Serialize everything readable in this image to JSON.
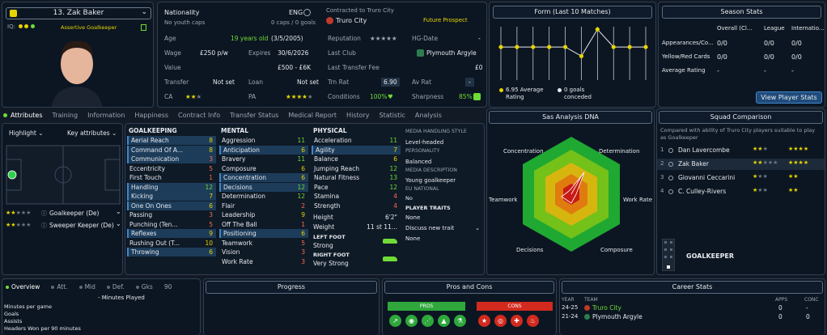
{
  "player": {
    "name": "13. Zak Baker",
    "role": "Assertive Goalkeeper",
    "iq_label": "IQ:"
  },
  "info": {
    "nationality_label": "Nationality",
    "nationality": "ENG",
    "youth_caps": "No youth caps",
    "caps": "0 caps / 0 goals",
    "contract_label": "Contracted to Truro City",
    "club": "Truro City",
    "prospect": "Future Prospect",
    "age_label": "Age",
    "age": "19 years old",
    "dob": "(3/5/2005)",
    "reputation_label": "Reputation",
    "hg_label": "HG-Date",
    "hg_value": "-",
    "wage_label": "Wage",
    "wage": "£250 p/w",
    "expires_label": "Expires",
    "expires": "30/6/2026",
    "last_club_label": "Last Club",
    "last_club": "Plymouth Argyle",
    "value_label": "Value",
    "value": "£500 - £6K",
    "ltf_label": "Last Transfer Fee",
    "ltf": "£0",
    "transfer_label": "Transfer",
    "transfer": "Not set",
    "loan_label": "Loan",
    "loan": "Not set",
    "trn_label": "Trn Rat",
    "trn": "6.90",
    "av_label": "Av Rat",
    "av": "-",
    "ca_label": "CA",
    "pa_label": "PA",
    "conditions_label": "Conditions",
    "conditions": "100%",
    "sharpness_label": "Sharpness",
    "sharpness": "85%"
  },
  "form": {
    "title": "Form (Last 10 Matches)",
    "avg": "6.95 Average Rating",
    "goals": "0 goals conceded",
    "points": [
      0.62,
      0.62,
      0.62,
      0.62,
      0.62,
      0.45,
      0.95,
      0.62,
      0.62,
      0.62
    ]
  },
  "season": {
    "title": "Season Stats",
    "cols": [
      "Overall (Cl...",
      "League",
      "Internatio..."
    ],
    "rows": [
      {
        "label": "Appearances/Co...",
        "v": [
          "0/0",
          "0/0",
          "0/0"
        ]
      },
      {
        "label": "Yellow/Red Cards",
        "v": [
          "0/0",
          "0/0",
          "0/0"
        ]
      },
      {
        "label": "Average Rating",
        "v": [
          "-",
          "-",
          "-"
        ]
      }
    ],
    "button": "View Player Stats"
  },
  "tabs": [
    "Attributes",
    "Training",
    "Information",
    "Happiness",
    "Contract Info",
    "Transfer Status",
    "Medical Report",
    "History",
    "Statistic",
    "Analysis"
  ],
  "left": {
    "highlight": "Highlight",
    "key_attr": "Key attributes",
    "roles": [
      {
        "label": "Goalkeeper (De)"
      },
      {
        "label": "Sweeper Keeper (De)"
      }
    ]
  },
  "gk": {
    "title": "GOALKEEPING",
    "items": [
      [
        "Aerial Reach",
        "8"
      ],
      [
        "Command Of A...",
        "8"
      ],
      [
        "Communication",
        "3"
      ],
      [
        "Eccentricity",
        "5"
      ],
      [
        "First Touch",
        "1"
      ],
      [
        "Handling",
        "12"
      ],
      [
        "Kicking",
        "7"
      ],
      [
        "One On Ones",
        "6"
      ],
      [
        "Passing",
        "3"
      ],
      [
        "Punching (Ten...",
        "5"
      ],
      [
        "Reflexes",
        "9"
      ],
      [
        "Rushing Out (T...",
        "10"
      ],
      [
        "Throwing",
        "6"
      ]
    ]
  },
  "mental": {
    "title": "MENTAL",
    "items": [
      [
        "Aggression",
        "11"
      ],
      [
        "Anticipation",
        "6"
      ],
      [
        "Bravery",
        "11"
      ],
      [
        "Composure",
        "6"
      ],
      [
        "Concentration",
        "6"
      ],
      [
        "Decisions",
        "12"
      ],
      [
        "Determination",
        "12"
      ],
      [
        "Flair",
        "2"
      ],
      [
        "Leadership",
        "9"
      ],
      [
        "Off The Ball",
        "1"
      ],
      [
        "Positioning",
        "6"
      ],
      [
        "Teamwork",
        "5"
      ],
      [
        "Vision",
        "3"
      ],
      [
        "Work Rate",
        "3"
      ]
    ]
  },
  "physical": {
    "title": "PHYSICAL",
    "items": [
      [
        "Acceleration",
        "11"
      ],
      [
        "Agility",
        "7"
      ],
      [
        "Balance",
        "6"
      ],
      [
        "Jumping Reach",
        "12"
      ],
      [
        "Natural Fitness",
        "13"
      ],
      [
        "Pace",
        "12"
      ],
      [
        "Stamina",
        "4"
      ],
      [
        "Strength",
        "4"
      ]
    ],
    "height_label": "Height",
    "height": "6'2\"",
    "weight_label": "Weight",
    "weight": "11 st 11...",
    "left_foot_label": "LEFT FOOT",
    "left_foot": "Strong",
    "right_foot_label": "RIGHT FOOT",
    "right_foot": "Very Strong"
  },
  "media": {
    "title": "MEDIA HANDLING STYLE",
    "style": "Level-headed",
    "personality_label": "PERSONALITY",
    "personality": "Balanced",
    "desc_label": "MEDIA DESCRIPTION",
    "desc": "Young goalkeeper",
    "eu_label": "EU NATIONAL",
    "eu": "No",
    "traits_label": "PLAYER TRAITS",
    "traits": "None",
    "discuss": "Discuss new trait",
    "none2": "None"
  },
  "dna": {
    "title": "Sas Analysis DNA",
    "labels": [
      "Concentration",
      "Determination",
      "Work Rate",
      "Composure",
      "Decisions",
      "Teamwork"
    ]
  },
  "squad": {
    "title": "Squad Comparison",
    "desc": "Compared with ability of Truro City players suitable to play as Goalkeeper",
    "rows": [
      {
        "n": "1",
        "name": "Dan Lavercombe"
      },
      {
        "n": "2",
        "name": "Zak Baker"
      },
      {
        "n": "3",
        "name": "Giovanni Ceccarini"
      },
      {
        "n": "4",
        "name": "C. Culley-Rivers"
      }
    ],
    "position": "GOALKEEPER"
  },
  "bottom": {
    "tabs": [
      "Overview",
      "Att.",
      "Mid",
      "Def.",
      "Gks",
      "90"
    ],
    "minutes_played": "- Minutes Played",
    "stats": [
      "Minutes per game",
      "Goals",
      "Assists",
      "Headers Won per 90 minutes"
    ],
    "progress": "Progress",
    "proscons": "Pros and Cons",
    "pros": "PROS",
    "cons": "CONS",
    "career": "Career Stats",
    "career_cols": [
      "YEAR",
      "TEAM",
      "APPS",
      "CONC"
    ],
    "career_rows": [
      {
        "year": "24-25",
        "team": "Truro City",
        "apps": "0",
        "conc": "-"
      },
      {
        "year": "21-24",
        "team": "Plymouth Argyle",
        "apps": "0",
        "conc": "0"
      }
    ]
  }
}
